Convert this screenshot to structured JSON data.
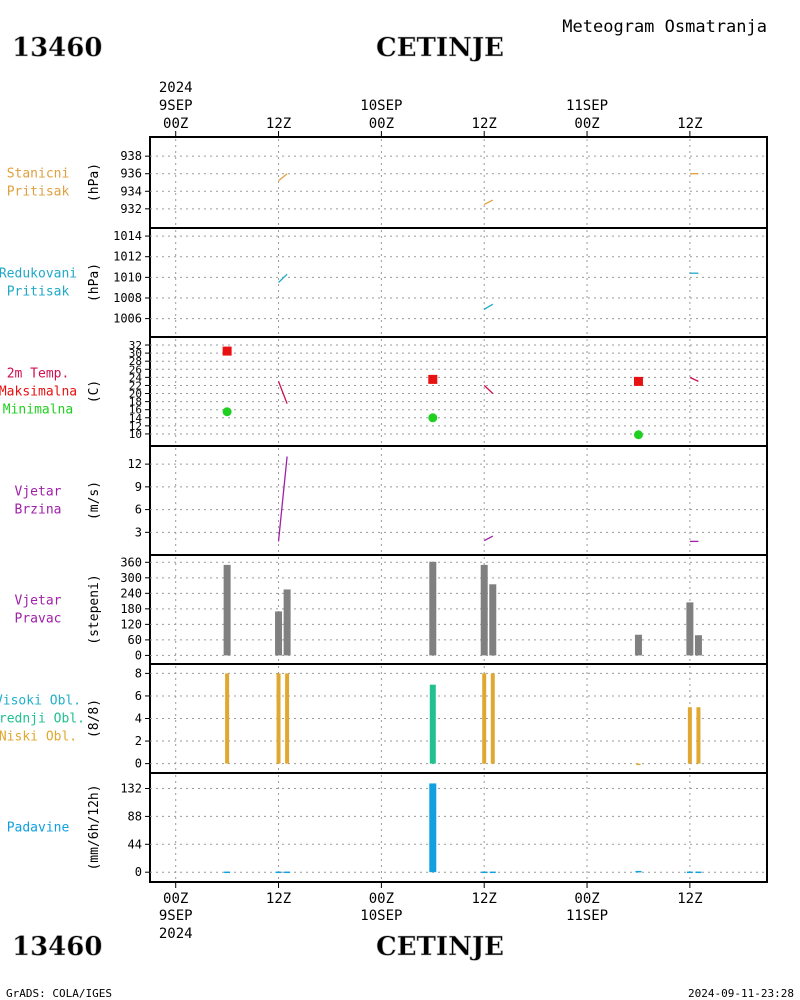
{
  "header": {
    "station_id": "13460",
    "station_name": "CETINJE",
    "product": "Meteogram Osmatranja",
    "footer_left": "GrADS: COLA/IGES",
    "footer_right": "2024-09-11-23:28"
  },
  "time_axis": {
    "year": "2024",
    "top_labels": [
      {
        "hour": "00Z",
        "date": "9SEP",
        "year": "2024",
        "t": 0
      },
      {
        "hour": "12Z",
        "date": "",
        "t": 12
      },
      {
        "hour": "00Z",
        "date": "10SEP",
        "t": 24
      },
      {
        "hour": "12Z",
        "date": "",
        "t": 36
      },
      {
        "hour": "00Z",
        "date": "11SEP",
        "t": 48
      },
      {
        "hour": "12Z",
        "date": "",
        "t": 60
      }
    ],
    "bottom_labels": [
      {
        "hour": "00Z",
        "date": "9SEP",
        "year": "2024",
        "t": 0
      },
      {
        "hour": "12Z",
        "date": "",
        "t": 12
      },
      {
        "hour": "00Z",
        "date": "10SEP",
        "t": 24
      },
      {
        "hour": "12Z",
        "date": "",
        "t": 36
      },
      {
        "hour": "00Z",
        "date": "11SEP",
        "t": 48
      },
      {
        "hour": "12Z",
        "date": "",
        "t": 60
      }
    ],
    "range_hours": [
      -3,
      69
    ]
  },
  "colors": {
    "station_pressure": "#e0a040",
    "reduced_pressure": "#20a8c8",
    "temp_label": "#d01050",
    "tmax": "#e81010",
    "tmin": "#20d020",
    "wind": "#a020a8",
    "wind_dir_bar": "#808080",
    "cloud_high": "#20b0c8",
    "cloud_mid": "#20c090",
    "cloud_low": "#e0a830",
    "precip": "#10a0e0"
  },
  "chart_data": [
    {
      "id": "station_pressure",
      "type": "line",
      "labels": [
        "Stanicni",
        "Pritisak"
      ],
      "ylabel": "(hPa)",
      "ylim": [
        930.5,
        939.5
      ],
      "yticks": [
        932,
        934,
        936,
        938
      ],
      "series": [
        {
          "name": "Stanicni Pritisak",
          "segments": [
            [
              [
                12,
                935.2
              ],
              [
                13,
                936.0
              ]
            ],
            [
              [
                36,
                932.5
              ],
              [
                37,
                933.0
              ]
            ],
            [
              [
                60,
                936.0
              ],
              [
                61,
                936.0
              ]
            ]
          ]
        }
      ]
    },
    {
      "id": "reduced_pressure",
      "type": "line",
      "labels": [
        "Redukovani",
        "Pritisak"
      ],
      "ylabel": "(hPa)",
      "ylim": [
        1004.8,
        1014.2
      ],
      "yticks": [
        1006,
        1008,
        1010,
        1012,
        1014
      ],
      "series": [
        {
          "name": "Redukovani Pritisak",
          "segments": [
            [
              [
                12,
                1009.5
              ],
              [
                13,
                1010.3
              ]
            ],
            [
              [
                36,
                1006.9
              ],
              [
                37,
                1007.4
              ]
            ],
            [
              [
                60,
                1010.4
              ],
              [
                61,
                1010.4
              ]
            ]
          ]
        }
      ]
    },
    {
      "id": "temperature",
      "type": "scatter",
      "labels": [
        "2m Temp.",
        "Maksimalna",
        "Minimalna"
      ],
      "ylabel": "(C)",
      "ylim": [
        8.5,
        32.5
      ],
      "yticks": [
        10,
        12,
        14,
        16,
        18,
        20,
        22,
        24,
        26,
        28,
        30,
        32
      ],
      "series": [
        {
          "name": "2m Temp.",
          "segments": [
            [
              [
                12,
                23.0
              ],
              [
                13,
                17.5
              ]
            ],
            [
              [
                36,
                22.0
              ],
              [
                37,
                20.0
              ]
            ],
            [
              [
                60,
                24.0
              ],
              [
                61,
                23.0
              ]
            ]
          ]
        },
        {
          "name": "Maksimalna",
          "points": [
            [
              6,
              30.5
            ],
            [
              30,
              23.5
            ],
            [
              54,
              23.0
            ]
          ]
        },
        {
          "name": "Minimalna",
          "points": [
            [
              6,
              15.5
            ],
            [
              30,
              14.0
            ],
            [
              54,
              9.8
            ]
          ]
        }
      ]
    },
    {
      "id": "wind_speed",
      "type": "line",
      "labels": [
        "Vjetar",
        "Brzina"
      ],
      "ylabel": "(m/s)",
      "ylim": [
        0.8,
        13.6
      ],
      "yticks": [
        3,
        6,
        9,
        12
      ],
      "series": [
        {
          "name": "Vjetar Brzina",
          "segments": [
            [
              [
                12,
                1.8
              ],
              [
                13,
                13.0
              ]
            ],
            [
              [
                36,
                1.9
              ],
              [
                37,
                2.5
              ]
            ],
            [
              [
                60,
                1.8
              ],
              [
                61,
                1.8
              ]
            ]
          ]
        }
      ]
    },
    {
      "id": "wind_direction",
      "type": "bar",
      "labels": [
        "Vjetar",
        "Pravac"
      ],
      "ylabel": "(stepeni)",
      "ylim": [
        -10,
        365
      ],
      "yticks": [
        0,
        60,
        120,
        180,
        240,
        300,
        360
      ],
      "bars": [
        {
          "t": 6,
          "value": 350
        },
        {
          "t": 12,
          "value": 170
        },
        {
          "t": 13,
          "value": 255
        },
        {
          "t": 30,
          "value": 362
        },
        {
          "t": 36,
          "value": 350
        },
        {
          "t": 37,
          "value": 275
        },
        {
          "t": 54,
          "value": 80
        },
        {
          "t": 60,
          "value": 205
        },
        {
          "t": 61,
          "value": 78
        }
      ]
    },
    {
      "id": "clouds",
      "type": "bar",
      "labels": [
        "Visoki Obl.",
        "Srednji Obl.",
        "Niski Obl."
      ],
      "ylabel": "(8/8)",
      "ylim": [
        -0.3,
        8.3
      ],
      "yticks": [
        0,
        2,
        4,
        6,
        8
      ],
      "bars": [
        {
          "t": 6,
          "value": 8,
          "layer": "Niski Obl."
        },
        {
          "t": 12,
          "value": 8,
          "layer": "Niski Obl."
        },
        {
          "t": 13,
          "value": 8,
          "layer": "Niski Obl."
        },
        {
          "t": 30,
          "value": 7,
          "layer": "Srednji Obl."
        },
        {
          "t": 36,
          "value": 8,
          "layer": "Niski Obl."
        },
        {
          "t": 37,
          "value": 8,
          "layer": "Niski Obl."
        },
        {
          "t": 54,
          "value": 0,
          "layer": "Niski Obl."
        },
        {
          "t": 60,
          "value": 5,
          "layer": "Niski Obl."
        },
        {
          "t": 61,
          "value": 5,
          "layer": "Niski Obl."
        }
      ]
    },
    {
      "id": "precipitation",
      "type": "bar",
      "labels": [
        "Padavine"
      ],
      "ylabel": "(mm/6h/12h)",
      "ylim": [
        -6,
        147
      ],
      "yticks": [
        0,
        44,
        88,
        132
      ],
      "bars": [
        {
          "t": 6,
          "value": 1
        },
        {
          "t": 12,
          "value": 1
        },
        {
          "t": 13,
          "value": 1
        },
        {
          "t": 30,
          "value": 140
        },
        {
          "t": 36,
          "value": 1
        },
        {
          "t": 37,
          "value": 1
        },
        {
          "t": 54,
          "value": 2
        },
        {
          "t": 60,
          "value": 1
        },
        {
          "t": 61,
          "value": 1
        }
      ]
    }
  ]
}
